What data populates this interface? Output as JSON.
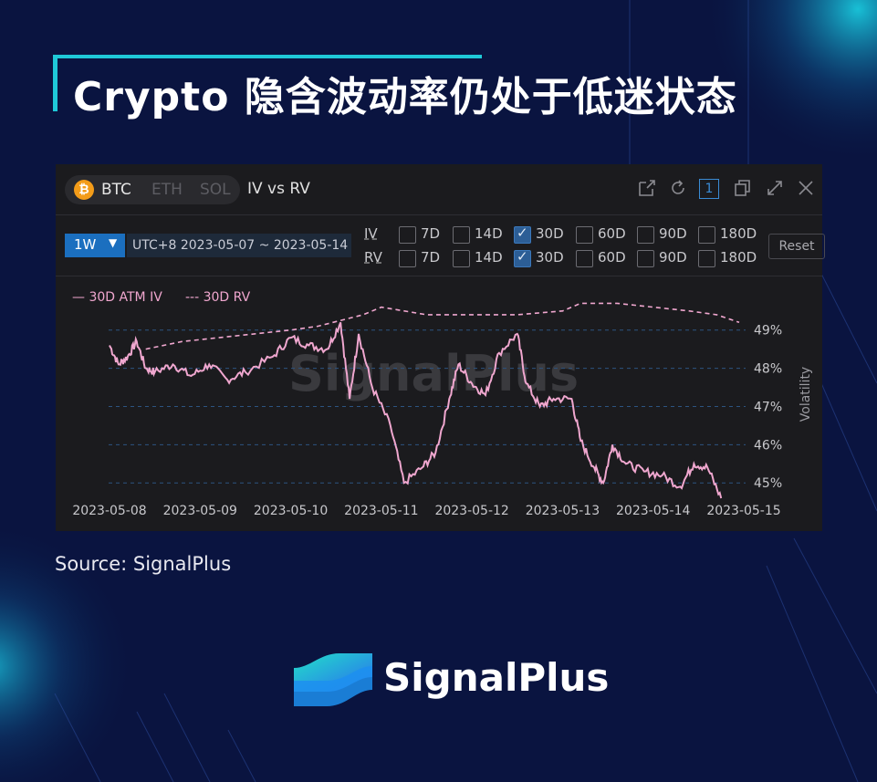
{
  "title": "Crypto 隐含波动率仍处于低迷状态",
  "panel": {
    "coins": [
      {
        "label": "BTC",
        "active": true
      },
      {
        "label": "ETH",
        "active": false
      },
      {
        "label": "SOL",
        "active": false
      }
    ],
    "coin_badge": "₿",
    "view_title": "IV vs RV",
    "tool_badge": "1",
    "period": "1W",
    "date_range": "UTC+8 2023-05-07 ~ 2023-05-14",
    "rows": [
      {
        "label": "IV",
        "options": [
          "7D",
          "14D",
          "30D",
          "60D",
          "90D",
          "180D"
        ],
        "checked": "30D"
      },
      {
        "label": "RV",
        "options": [
          "7D",
          "14D",
          "30D",
          "60D",
          "90D",
          "180D"
        ],
        "checked": "30D"
      }
    ],
    "reset_label": "Reset",
    "legend": {
      "iv": "— 30D ATM IV",
      "rv": "--- 30D RV"
    },
    "watermark": "SignalPlus"
  },
  "chart_data": {
    "type": "line",
    "x": [
      "2023-05-08",
      "2023-05-09",
      "2023-05-10",
      "2023-05-11",
      "2023-05-12",
      "2023-05-13",
      "2023-05-14",
      "2023-05-15"
    ],
    "ylabel": "Volatility",
    "yticks": [
      "45%",
      "46%",
      "47%",
      "48%",
      "49%"
    ],
    "ylim": [
      44.6,
      49.9
    ],
    "line_color": "#f0a7cf",
    "series": [
      {
        "name": "30D ATM IV",
        "style": "solid",
        "points": [
          [
            0,
            48.6
          ],
          [
            0.1,
            48.1
          ],
          [
            0.2,
            48.3
          ],
          [
            0.3,
            48.7
          ],
          [
            0.4,
            48.0
          ],
          [
            0.5,
            47.9
          ],
          [
            0.7,
            48.1
          ],
          [
            0.9,
            47.8
          ],
          [
            1.1,
            48.1
          ],
          [
            1.3,
            47.7
          ],
          [
            1.5,
            47.9
          ],
          [
            1.8,
            48.3
          ],
          [
            2.0,
            48.8
          ],
          [
            2.2,
            48.6
          ],
          [
            2.4,
            48.5
          ],
          [
            2.55,
            49.2
          ],
          [
            2.65,
            47.2
          ],
          [
            2.75,
            48.9
          ],
          [
            2.9,
            47.5
          ],
          [
            3.1,
            46.5
          ],
          [
            3.25,
            45.0
          ],
          [
            3.45,
            45.4
          ],
          [
            3.6,
            45.8
          ],
          [
            3.75,
            47.2
          ],
          [
            3.85,
            48.1
          ],
          [
            4.0,
            47.6
          ],
          [
            4.15,
            47.3
          ],
          [
            4.3,
            48.4
          ],
          [
            4.5,
            48.9
          ],
          [
            4.6,
            47.6
          ],
          [
            4.75,
            47.0
          ],
          [
            4.9,
            47.2
          ],
          [
            5.1,
            47.2
          ],
          [
            5.2,
            46.1
          ],
          [
            5.35,
            45.4
          ],
          [
            5.45,
            45.0
          ],
          [
            5.55,
            46.0
          ],
          [
            5.7,
            45.5
          ],
          [
            5.9,
            45.3
          ],
          [
            6.1,
            45.2
          ],
          [
            6.3,
            44.9
          ],
          [
            6.45,
            45.5
          ],
          [
            6.6,
            45.4
          ],
          [
            6.75,
            44.6
          ]
        ]
      },
      {
        "name": "30D RV",
        "style": "dashed",
        "points": [
          [
            0.4,
            48.5
          ],
          [
            0.8,
            48.7
          ],
          [
            1.2,
            48.8
          ],
          [
            1.6,
            48.9
          ],
          [
            2.0,
            49.0
          ],
          [
            2.3,
            49.1
          ],
          [
            2.8,
            49.4
          ],
          [
            3.0,
            49.6
          ],
          [
            3.5,
            49.4
          ],
          [
            4.0,
            49.4
          ],
          [
            4.5,
            49.4
          ],
          [
            5.0,
            49.5
          ],
          [
            5.2,
            49.7
          ],
          [
            5.6,
            49.7
          ],
          [
            6.0,
            49.6
          ],
          [
            6.4,
            49.5
          ],
          [
            6.7,
            49.4
          ],
          [
            6.95,
            49.2
          ]
        ]
      }
    ]
  },
  "source": "Source: SignalPlus",
  "logo": {
    "text": "SignalPlus"
  }
}
